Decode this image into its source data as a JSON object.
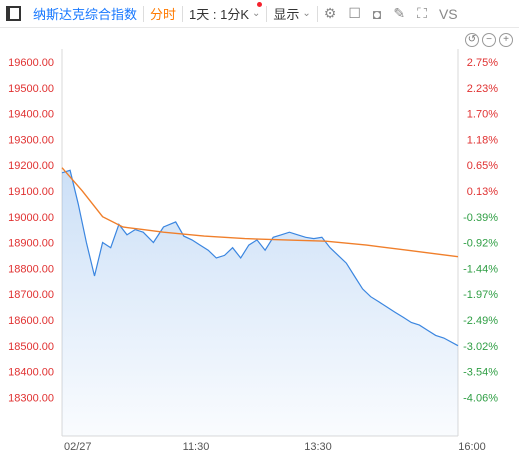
{
  "toolbar": {
    "index_name": "纳斯达克综合指数",
    "mode_label": "分时",
    "period_label": "1天 : 1分K",
    "display_label": "显示",
    "vs_label": "VS"
  },
  "chart_data": {
    "type": "area",
    "y_ticks": [
      "19600.00",
      "19500.00",
      "19400.00",
      "19300.00",
      "19200.00",
      "19100.00",
      "19000.00",
      "18900.00",
      "18800.00",
      "18700.00",
      "18600.00",
      "18500.00",
      "18400.00",
      "18300.00"
    ],
    "pct_ticks": [
      "2.75%",
      "2.23%",
      "1.70%",
      "1.18%",
      "0.65%",
      "0.13%",
      "-0.39%",
      "-0.92%",
      "-1.44%",
      "-1.97%",
      "-2.49%",
      "-3.02%",
      "-3.54%",
      "-4.06%"
    ],
    "x_ticks": [
      "02/27",
      "11:30",
      "13:30",
      "16:00"
    ],
    "ylim": [
      18200,
      19700
    ],
    "series": [
      {
        "x": [
          0,
          8,
          16,
          24,
          32,
          40,
          48,
          56,
          64,
          72,
          80,
          90,
          100,
          112,
          120,
          128,
          136,
          144,
          152,
          160,
          168,
          176,
          184,
          192,
          200,
          208,
          216,
          224,
          232,
          240,
          248,
          256,
          264,
          272,
          280,
          288,
          296,
          304,
          312,
          320,
          328,
          336,
          344,
          352,
          360,
          368,
          376,
          390
        ],
        "values": [
          19220,
          19230,
          19100,
          18950,
          18820,
          18950,
          18930,
          19020,
          18980,
          19000,
          18990,
          18950,
          19010,
          19030,
          18975,
          18960,
          18940,
          18920,
          18890,
          18900,
          18930,
          18890,
          18940,
          18960,
          18920,
          18970,
          18980,
          18990,
          18980,
          18970,
          18965,
          18970,
          18930,
          18900,
          18870,
          18820,
          18770,
          18740,
          18720,
          18700,
          18680,
          18660,
          18640,
          18630,
          18610,
          18590,
          18580,
          18550
        ]
      },
      {
        "x": [
          0,
          20,
          40,
          60,
          80,
          100,
          140,
          180,
          220,
          260,
          300,
          340,
          390
        ],
        "values": [
          19240,
          19150,
          19050,
          19010,
          19000,
          18990,
          18975,
          18965,
          18960,
          18955,
          18940,
          18920,
          18895
        ]
      }
    ]
  }
}
